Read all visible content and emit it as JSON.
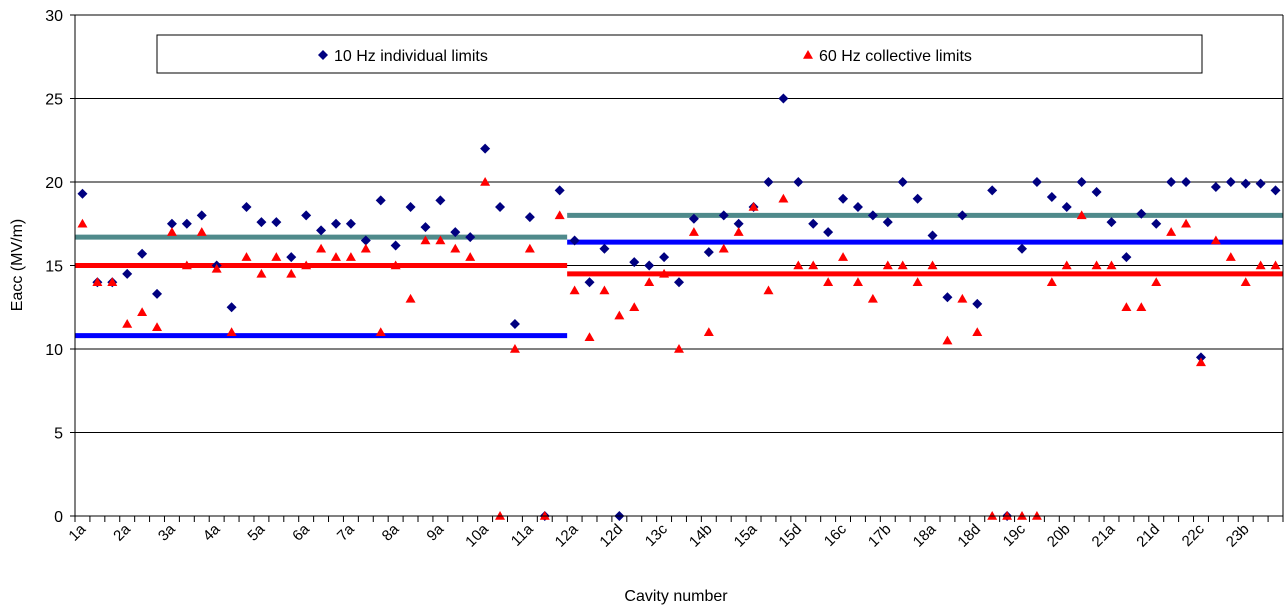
{
  "chart_data": {
    "type": "scatter",
    "title": "",
    "xlabel": "Cavity number",
    "ylabel": "Eacc (MV/m)",
    "ylim": [
      0,
      30
    ],
    "yticks": [
      0,
      5,
      10,
      15,
      20,
      25,
      30
    ],
    "grid": "horizontal",
    "legend_position": "top",
    "x_count": 81,
    "x_tick_labels": [
      {
        "i": 0,
        "label": "1a"
      },
      {
        "i": 3,
        "label": "2a"
      },
      {
        "i": 6,
        "label": "3a"
      },
      {
        "i": 9,
        "label": "4a"
      },
      {
        "i": 12,
        "label": "5a"
      },
      {
        "i": 15,
        "label": "6a"
      },
      {
        "i": 18,
        "label": "7a"
      },
      {
        "i": 21,
        "label": "8a"
      },
      {
        "i": 24,
        "label": "9a"
      },
      {
        "i": 27,
        "label": "10a"
      },
      {
        "i": 30,
        "label": "11a"
      },
      {
        "i": 33,
        "label": "12a"
      },
      {
        "i": 36,
        "label": "12d"
      },
      {
        "i": 39,
        "label": "13c"
      },
      {
        "i": 42,
        "label": "14b"
      },
      {
        "i": 45,
        "label": "15a"
      },
      {
        "i": 48,
        "label": "15d"
      },
      {
        "i": 51,
        "label": "16c"
      },
      {
        "i": 54,
        "label": "17b"
      },
      {
        "i": 57,
        "label": "18a"
      },
      {
        "i": 60,
        "label": "18d"
      },
      {
        "i": 63,
        "label": "19c"
      },
      {
        "i": 66,
        "label": "20b"
      },
      {
        "i": 69,
        "label": "21a"
      },
      {
        "i": 72,
        "label": "21d"
      },
      {
        "i": 75,
        "label": "22c"
      },
      {
        "i": 78,
        "label": "23b"
      }
    ],
    "series": [
      {
        "name": "10 Hz individual limits",
        "color": "#000080",
        "marker": "diamond",
        "values": [
          19.3,
          14,
          14,
          14.5,
          15.7,
          13.3,
          17.5,
          17.5,
          18,
          15,
          12.5,
          18.5,
          17.6,
          17.6,
          15.5,
          18,
          17.1,
          17.5,
          17.5,
          16.5,
          18.9,
          16.2,
          18.5,
          17.3,
          18.9,
          17,
          16.7,
          22,
          18.5,
          11.5,
          17.9,
          0,
          19.5,
          16.5,
          14,
          16,
          0,
          15.2,
          15,
          15.5,
          14,
          17.8,
          15.8,
          18,
          17.5,
          18.5,
          20,
          25,
          20,
          17.5,
          17,
          19,
          18.5,
          18,
          17.6,
          20,
          19,
          16.8,
          13.1,
          18,
          12.7,
          19.5,
          0,
          16,
          20,
          19.1,
          18.5,
          20,
          19.4,
          17.6,
          15.5,
          18.1,
          17.5,
          20,
          20,
          9.5,
          19.7,
          20,
          19.9,
          19.9,
          19.5
        ]
      },
      {
        "name": "60 Hz collective limits",
        "color": "#ff0000",
        "marker": "triangle",
        "values": [
          17.5,
          14,
          14,
          11.5,
          12.2,
          11.3,
          17,
          15,
          17,
          14.8,
          11,
          15.5,
          14.5,
          15.5,
          14.5,
          15,
          16,
          15.5,
          15.5,
          16,
          11,
          15,
          13,
          16.5,
          16.5,
          16,
          15.5,
          20,
          0,
          10,
          16,
          0,
          18,
          13.5,
          10.7,
          13.5,
          12,
          12.5,
          14,
          14.5,
          10,
          17,
          11,
          16,
          17,
          18.5,
          13.5,
          19,
          15,
          15,
          14,
          15.5,
          14,
          13,
          15,
          15,
          14,
          15,
          10.5,
          13,
          11,
          0,
          0,
          0,
          0,
          14,
          15,
          18,
          15,
          15,
          12.5,
          12.5,
          14,
          17,
          17.5,
          9.2,
          16.5,
          15.5,
          14,
          15,
          15
        ]
      }
    ],
    "reference_lines": [
      {
        "color": "#0000ff",
        "x_start": 0,
        "x_end": 32,
        "y": 10.8
      },
      {
        "color": "#ff0000",
        "x_start": 0,
        "x_end": 32,
        "y": 15
      },
      {
        "color": "#4f8a8b",
        "x_start": 0,
        "x_end": 32,
        "y": 16.7
      },
      {
        "color": "#0000ff",
        "x_start": 33,
        "x_end": 80,
        "y": 16.4
      },
      {
        "color": "#ff0000",
        "x_start": 33,
        "x_end": 80,
        "y": 14.5
      },
      {
        "color": "#4f8a8b",
        "x_start": 33,
        "x_end": 80,
        "y": 18
      }
    ]
  }
}
